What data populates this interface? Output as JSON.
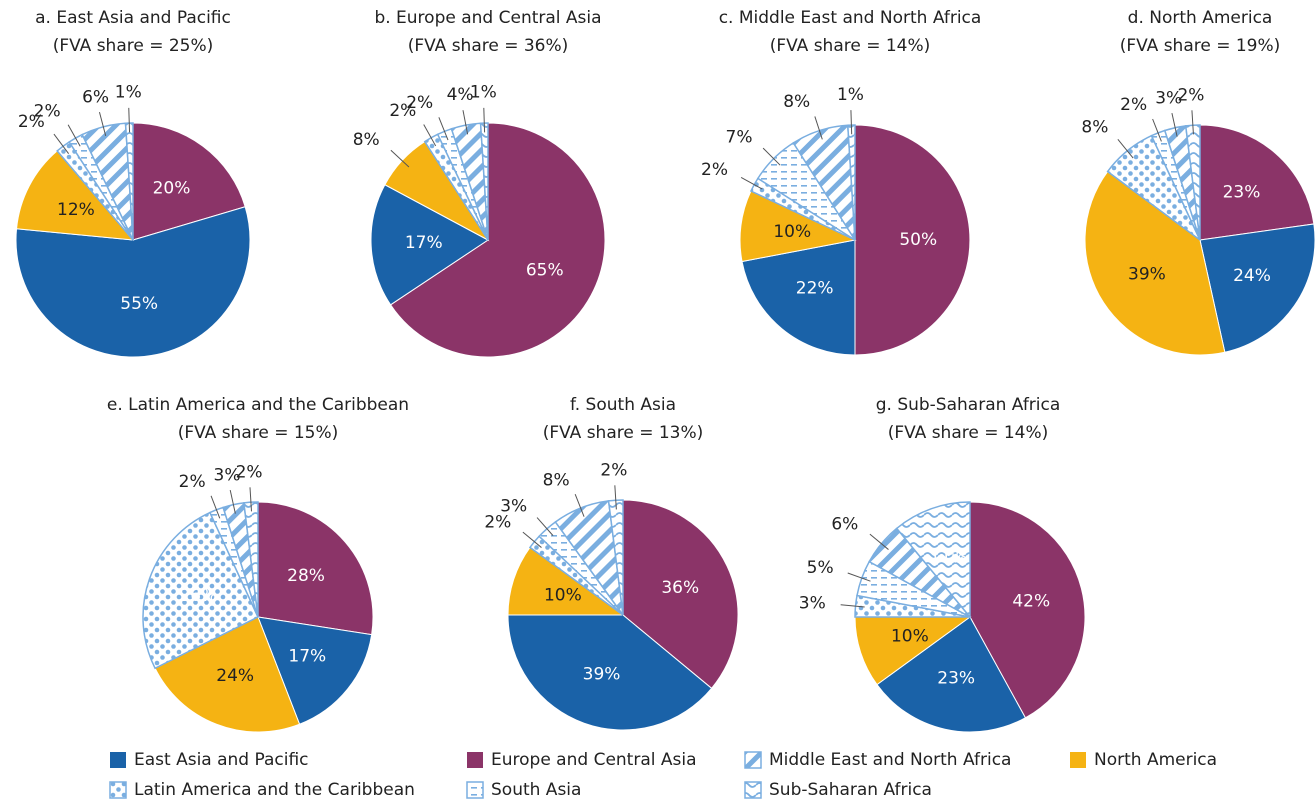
{
  "legend": {
    "categories": [
      "East Asia and Pacific",
      "Europe and Central Asia",
      "Middle East and North Africa",
      "North America",
      "Latin America and the Caribbean",
      "South Asia",
      "Sub-Saharan Africa"
    ],
    "colors": [
      "#1a62a8",
      "#8b3468",
      "#7aaee0",
      "#f5b313",
      "#7aaee0",
      "#7aaee0",
      "#7aaee0"
    ],
    "patterns": [
      "solid",
      "solid",
      "diagonal",
      "solid",
      "dots",
      "dashes",
      "waves"
    ]
  },
  "chart_data": [
    {
      "type": "pie",
      "title": "a. East Asia and Pacific",
      "subtitle": "(FVA share = 25%)",
      "values": [
        55,
        20,
        6,
        12,
        2,
        2,
        1
      ],
      "value_labels": [
        "55%",
        "20%",
        "6%",
        "12%",
        "2%",
        "2%",
        "1%"
      ]
    },
    {
      "type": "pie",
      "title": "b. Europe and Central Asia",
      "subtitle": "(FVA share = 36%)",
      "values": [
        17,
        65,
        4,
        8,
        2,
        2,
        1
      ],
      "value_labels": [
        "17%",
        "65%",
        "4%",
        "8%",
        "2%",
        "2%",
        "1%"
      ]
    },
    {
      "type": "pie",
      "title": "c. Middle East and North Africa",
      "subtitle": "(FVA share = 14%)",
      "values": [
        22,
        50,
        8,
        10,
        2,
        7,
        1
      ],
      "value_labels": [
        "22%",
        "50%",
        "8%",
        "10%",
        "2%",
        "7%",
        "1%"
      ]
    },
    {
      "type": "pie",
      "title": "d. North America",
      "subtitle": "(FVA share = 19%)",
      "values": [
        24,
        23,
        3,
        39,
        8,
        2,
        2
      ],
      "value_labels": [
        "24%",
        "23%",
        "3%",
        "39%",
        "8%",
        "2%",
        "2%"
      ]
    },
    {
      "type": "pie",
      "title": "e. Latin America and the Caribbean",
      "subtitle": "(FVA share = 15%)",
      "values": [
        17,
        28,
        3,
        24,
        26,
        2,
        2
      ],
      "value_labels": [
        "17%",
        "28%",
        "3%",
        "24%",
        "26%",
        "2%",
        "2%"
      ]
    },
    {
      "type": "pie",
      "title": "f. South Asia",
      "subtitle": "(FVA share = 13%)",
      "values": [
        39,
        36,
        8,
        10,
        2,
        3,
        2
      ],
      "value_labels": [
        "39%",
        "36%",
        "8%",
        "10%",
        "2%",
        "3%",
        "2%"
      ]
    },
    {
      "type": "pie",
      "title": "g. Sub-Saharan Africa",
      "subtitle": "(FVA share = 14%)",
      "values": [
        23,
        42,
        6,
        10,
        3,
        5,
        11
      ],
      "value_labels": [
        "23%",
        "42%",
        "6%",
        "10%",
        "3%",
        "5%",
        "11%"
      ]
    }
  ]
}
